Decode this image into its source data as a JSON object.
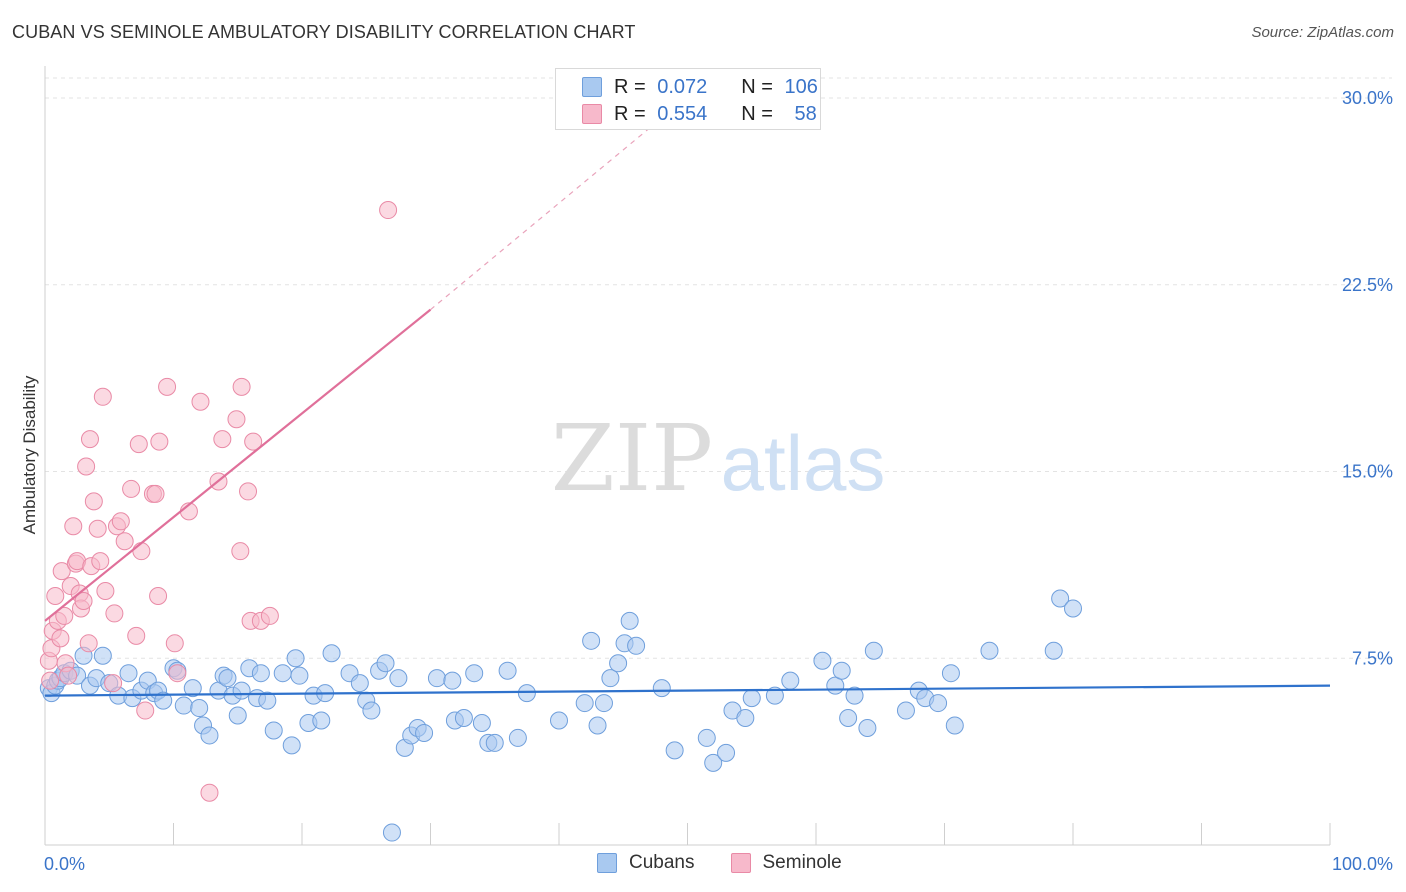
{
  "header": {
    "title": "CUBAN VS SEMINOLE AMBULATORY DISABILITY CORRELATION CHART",
    "source": "Source: ZipAtlas.com"
  },
  "watermark": {
    "zip": "ZIP",
    "atlas": "atlas"
  },
  "legend": {
    "rows": [
      {
        "r_label": "R = ",
        "r_value": "0.072",
        "n_label": "N = ",
        "n_value": "106"
      },
      {
        "r_label": "R = ",
        "r_value": "0.554",
        "n_label": "N = ",
        "n_value": "58"
      }
    ],
    "bottom": [
      "Cubans",
      "Seminole"
    ]
  },
  "colors": {
    "cubans_fill": "#a9c9f0",
    "cubans_stroke": "#6f9fdc",
    "cubans_line": "#2f72cc",
    "seminole_fill": "#f7b9cb",
    "seminole_stroke": "#e98aa6",
    "seminole_line": "#e0709a",
    "axis_label": "#3a74c9"
  },
  "chart_data": {
    "type": "scatter",
    "title": "CUBAN VS SEMINOLE AMBULATORY DISABILITY CORRELATION CHART",
    "xlabel": "",
    "ylabel": "Ambulatory Disability",
    "xlim": [
      0,
      100
    ],
    "ylim": [
      0,
      30
    ],
    "x_tick_labels": [
      "0.0%",
      "100.0%"
    ],
    "y_ticks": [
      7.5,
      15.0,
      22.5,
      30.0
    ],
    "y_tick_labels": [
      "7.5%",
      "15.0%",
      "22.5%",
      "30.0%"
    ],
    "grid": true,
    "series": [
      {
        "name": "Cubans",
        "R": 0.072,
        "N": 106,
        "trend": {
          "x": [
            0,
            100
          ],
          "y": [
            6.0,
            6.4
          ],
          "dashed_extension": false
        },
        "points": [
          [
            0.3,
            6.3
          ],
          [
            0.5,
            6.1
          ],
          [
            0.8,
            6.4
          ],
          [
            1.0,
            6.6
          ],
          [
            1.2,
            6.7
          ],
          [
            1.5,
            6.9
          ],
          [
            2.0,
            7.0
          ],
          [
            2.5,
            6.8
          ],
          [
            3.0,
            7.6
          ],
          [
            3.5,
            6.4
          ],
          [
            4.0,
            6.7
          ],
          [
            4.5,
            7.6
          ],
          [
            5.0,
            6.5
          ],
          [
            5.7,
            6.0
          ],
          [
            6.5,
            6.9
          ],
          [
            6.8,
            5.9
          ],
          [
            7.5,
            6.2
          ],
          [
            8.0,
            6.6
          ],
          [
            8.5,
            6.1
          ],
          [
            8.8,
            6.2
          ],
          [
            9.2,
            5.8
          ],
          [
            10.0,
            7.1
          ],
          [
            10.3,
            7.0
          ],
          [
            10.8,
            5.6
          ],
          [
            11.5,
            6.3
          ],
          [
            12.0,
            5.5
          ],
          [
            12.3,
            4.8
          ],
          [
            12.8,
            4.4
          ],
          [
            13.5,
            6.2
          ],
          [
            13.9,
            6.8
          ],
          [
            14.2,
            6.7
          ],
          [
            14.6,
            6.0
          ],
          [
            15.0,
            5.2
          ],
          [
            15.3,
            6.2
          ],
          [
            15.9,
            7.1
          ],
          [
            16.5,
            5.9
          ],
          [
            16.8,
            6.9
          ],
          [
            17.3,
            5.8
          ],
          [
            17.8,
            4.6
          ],
          [
            18.5,
            6.9
          ],
          [
            19.2,
            4.0
          ],
          [
            19.5,
            7.5
          ],
          [
            19.8,
            6.8
          ],
          [
            20.5,
            4.9
          ],
          [
            20.9,
            6.0
          ],
          [
            21.5,
            5.0
          ],
          [
            21.8,
            6.1
          ],
          [
            22.3,
            7.7
          ],
          [
            23.7,
            6.9
          ],
          [
            24.5,
            6.5
          ],
          [
            25.0,
            5.8
          ],
          [
            25.4,
            5.4
          ],
          [
            26.0,
            7.0
          ],
          [
            26.5,
            7.3
          ],
          [
            27.0,
            0.5
          ],
          [
            27.5,
            6.7
          ],
          [
            28.0,
            3.9
          ],
          [
            28.5,
            4.4
          ],
          [
            29.0,
            4.7
          ],
          [
            29.5,
            4.5
          ],
          [
            30.5,
            6.7
          ],
          [
            31.7,
            6.6
          ],
          [
            31.9,
            5.0
          ],
          [
            32.6,
            5.1
          ],
          [
            33.4,
            6.9
          ],
          [
            34.0,
            4.9
          ],
          [
            34.5,
            4.1
          ],
          [
            35.0,
            4.1
          ],
          [
            36.0,
            7.0
          ],
          [
            36.8,
            4.3
          ],
          [
            37.5,
            6.1
          ],
          [
            40.0,
            5.0
          ],
          [
            42.0,
            5.7
          ],
          [
            42.5,
            8.2
          ],
          [
            43.0,
            4.8
          ],
          [
            43.5,
            5.7
          ],
          [
            44.0,
            6.7
          ],
          [
            44.6,
            7.3
          ],
          [
            45.1,
            8.1
          ],
          [
            45.5,
            9.0
          ],
          [
            46.0,
            8.0
          ],
          [
            48.0,
            6.3
          ],
          [
            49.0,
            3.8
          ],
          [
            51.5,
            4.3
          ],
          [
            52.0,
            3.3
          ],
          [
            53.0,
            3.7
          ],
          [
            53.5,
            5.4
          ],
          [
            54.5,
            5.1
          ],
          [
            55.0,
            5.9
          ],
          [
            56.8,
            6.0
          ],
          [
            58.0,
            6.6
          ],
          [
            60.5,
            7.4
          ],
          [
            61.5,
            6.4
          ],
          [
            62.0,
            7.0
          ],
          [
            62.5,
            5.1
          ],
          [
            63.0,
            6.0
          ],
          [
            64.0,
            4.7
          ],
          [
            64.5,
            7.8
          ],
          [
            67.0,
            5.4
          ],
          [
            68.0,
            6.2
          ],
          [
            68.5,
            5.9
          ],
          [
            69.5,
            5.7
          ],
          [
            70.5,
            6.9
          ],
          [
            70.8,
            4.8
          ],
          [
            73.5,
            7.8
          ],
          [
            78.5,
            7.8
          ],
          [
            79.0,
            9.9
          ],
          [
            80.0,
            9.5
          ]
        ]
      },
      {
        "name": "Seminole",
        "R": 0.554,
        "N": 58,
        "trend": {
          "x": [
            0,
            30
          ],
          "y": [
            9.0,
            21.5
          ],
          "dashed_to": [
            48.0,
            29.2
          ]
        },
        "points": [
          [
            0.3,
            7.4
          ],
          [
            0.4,
            6.6
          ],
          [
            0.5,
            7.9
          ],
          [
            0.6,
            8.6
          ],
          [
            0.8,
            10.0
          ],
          [
            1.0,
            9.0
          ],
          [
            1.2,
            8.3
          ],
          [
            1.3,
            11.0
          ],
          [
            1.5,
            9.2
          ],
          [
            1.6,
            7.3
          ],
          [
            1.8,
            6.8
          ],
          [
            2.0,
            10.4
          ],
          [
            2.2,
            12.8
          ],
          [
            2.4,
            11.3
          ],
          [
            2.5,
            11.4
          ],
          [
            2.7,
            10.1
          ],
          [
            2.8,
            9.5
          ],
          [
            3.0,
            9.8
          ],
          [
            3.2,
            15.2
          ],
          [
            3.4,
            8.1
          ],
          [
            3.5,
            16.3
          ],
          [
            3.6,
            11.2
          ],
          [
            3.8,
            13.8
          ],
          [
            4.1,
            12.7
          ],
          [
            4.3,
            11.4
          ],
          [
            4.5,
            18.0
          ],
          [
            4.7,
            10.2
          ],
          [
            5.3,
            6.5
          ],
          [
            5.4,
            9.3
          ],
          [
            5.6,
            12.8
          ],
          [
            5.9,
            13.0
          ],
          [
            6.2,
            12.2
          ],
          [
            6.7,
            14.3
          ],
          [
            7.1,
            8.4
          ],
          [
            7.3,
            16.1
          ],
          [
            7.5,
            11.8
          ],
          [
            7.8,
            5.4
          ],
          [
            8.4,
            14.1
          ],
          [
            8.6,
            14.1
          ],
          [
            8.8,
            10.0
          ],
          [
            8.9,
            16.2
          ],
          [
            9.5,
            18.4
          ],
          [
            10.1,
            8.1
          ],
          [
            11.2,
            13.4
          ],
          [
            12.1,
            17.8
          ],
          [
            12.8,
            2.1
          ],
          [
            13.5,
            14.6
          ],
          [
            13.8,
            16.3
          ],
          [
            14.9,
            17.1
          ],
          [
            15.2,
            11.8
          ],
          [
            15.3,
            18.4
          ],
          [
            15.8,
            14.2
          ],
          [
            16.0,
            9.0
          ],
          [
            16.2,
            16.2
          ],
          [
            16.8,
            9.0
          ],
          [
            17.5,
            9.2
          ],
          [
            26.7,
            25.5
          ],
          [
            10.3,
            6.9
          ]
        ]
      }
    ]
  }
}
